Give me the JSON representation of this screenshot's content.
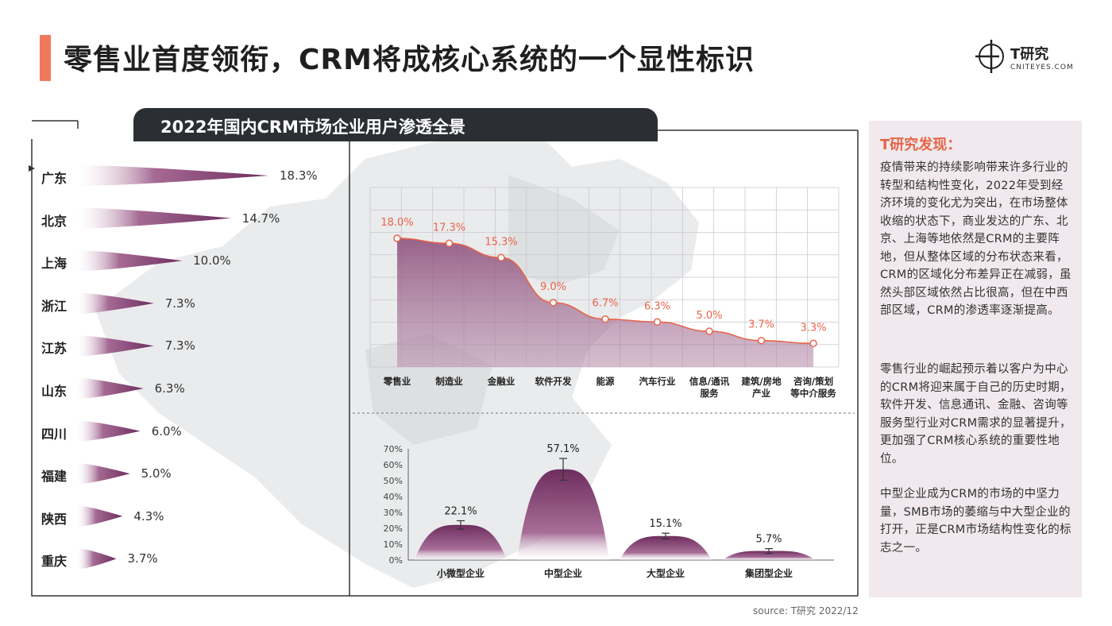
{
  "page": {
    "title": "零售业首度领衔，CRM将成核心系统的一个显性标识",
    "source": "source:  T研究 2022/12"
  },
  "logo": {
    "name": "T研究",
    "url": "CNITEYES.COM"
  },
  "panel": {
    "title": "2022年国内CRM市场企业用户渗透全景"
  },
  "colors": {
    "accent": "#ef7a5a",
    "purple": "#7a3a6a",
    "line": "#e8644a",
    "dark": "#2b2e33",
    "side_bg": "#f1e9ed"
  },
  "chart_data": [
    {
      "type": "bar",
      "orientation": "horizontal",
      "categories": [
        "广东",
        "北京",
        "上海",
        "浙江",
        "江苏",
        "山东",
        "四川",
        "福建",
        "陕西",
        "重庆"
      ],
      "values": [
        18.3,
        14.7,
        10.0,
        7.3,
        7.3,
        6.3,
        6.0,
        5.0,
        4.3,
        3.7
      ],
      "labels": [
        "18.3%",
        "14.7%",
        "10.0%",
        "7.3%",
        "7.3%",
        "6.3%",
        "6.0%",
        "5.0%",
        "4.3%",
        "3.7%"
      ]
    },
    {
      "type": "area",
      "categories": [
        "零售业",
        "制造业",
        "金融业",
        "软件开发",
        "能源",
        "汽车行业",
        "信息/通讯\n服务",
        "建筑/房地\n产业",
        "咨询/策划\n等中介服务"
      ],
      "values": [
        18.0,
        17.3,
        15.3,
        9.0,
        6.7,
        6.3,
        5.0,
        3.7,
        3.3
      ],
      "labels": [
        "18.0%",
        "17.3%",
        "15.3%",
        "9.0%",
        "6.7%",
        "6.3%",
        "5.0%",
        "3.7%",
        "3.3%"
      ],
      "grid": true
    },
    {
      "type": "bar",
      "categories": [
        "小微型企业",
        "中型企业",
        "大型企业",
        "集团型企业"
      ],
      "values": [
        22.1,
        57.1,
        15.1,
        5.7
      ],
      "labels": [
        "22.1%",
        "57.1%",
        "15.1%",
        "5.7%"
      ],
      "ylim": [
        0,
        70
      ],
      "yticks": [
        "0%",
        "10%",
        "20%",
        "30%",
        "40%",
        "50%",
        "60%",
        "70%"
      ],
      "error_bars": true
    }
  ],
  "side": {
    "title": "T研究发现：",
    "paragraphs": [
      "疫情带来的持续影响带来许多行业的转型和结构性变化，2022年受到经济环境的变化尤为突出，在市场整体收缩的状态下，商业发达的广东、北京、上海等地依然是CRM的主要阵地，但从整体区域的分布状态来看，CRM的区域化分布差异正在减弱，虽然头部区域依然占比很高，但在中西部区域，CRM的渗透率逐渐提高。",
      "零售行业的崛起预示着以客户为中心的CRM将迎来属于自己的历史时期，软件开发、信息通讯、金融、咨询等服务型行业对CRM需求的显著提升，更加强了CRM核心系统的重要性地位。",
      "中型企业成为CRM的市场的中坚力量，SMB市场的萎缩与中大型企业的打开，正是CRM市场结构性变化的标志之一。"
    ]
  }
}
